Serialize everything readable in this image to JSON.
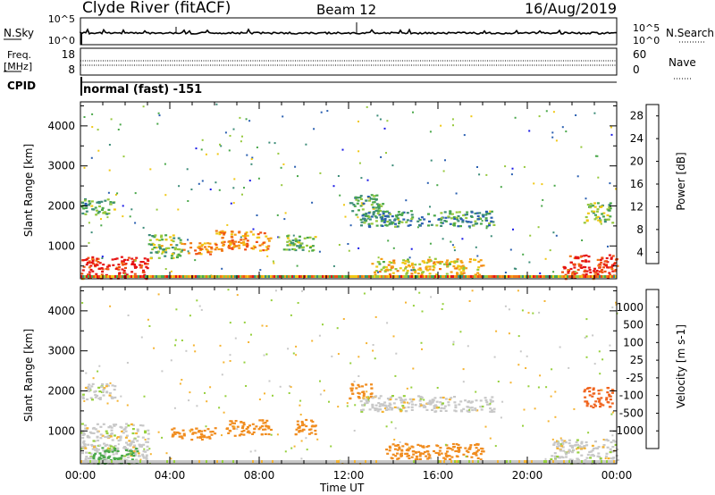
{
  "header": {
    "title": "Clyde River (fitACF)",
    "beam": "Beam 12",
    "date": "16/Aug/2019"
  },
  "nsky_panel": {
    "left_label": "N.Sky",
    "right_label": "N.Search",
    "left_ticks": [
      "10^5",
      "10^0"
    ],
    "right_ticks": [
      "10^5",
      "10^0"
    ]
  },
  "freq_panel": {
    "left_label": "Freq.",
    "left_unit": "[MHz]",
    "right_label": "Nave",
    "left_ticks": [
      "18",
      "8"
    ],
    "right_ticks": [
      "60",
      "0"
    ]
  },
  "cpid": {
    "label": "CPID",
    "value": "normal (fast) -151"
  },
  "x_axis": {
    "label": "Time UT",
    "ticks": [
      "00:00",
      "04:00",
      "08:00",
      "12:00",
      "16:00",
      "20:00",
      "00:00"
    ]
  },
  "chart_data": [
    {
      "type": "heatmap",
      "title": "",
      "ylabel": "Slant Range [km]",
      "xlabel": "Time UT",
      "xlim": [
        "00:00",
        "24:00"
      ],
      "ylim": [
        180,
        4600
      ],
      "ytick_labels": [
        "1000",
        "2000",
        "3000",
        "4000"
      ],
      "colorbar_label": "Power [dB]",
      "colorbar_ticks": [
        "4",
        "8",
        "12",
        "16",
        "20",
        "24",
        "28"
      ],
      "colorbar_colors": [
        "#1a1ae6",
        "#2a5fb0",
        "#3c8c78",
        "#4aa84a",
        "#96c83c",
        "#f0c814",
        "#f5a014",
        "#f07814",
        "#f05014",
        "#e61414"
      ],
      "regions": [
        {
          "t": [
            0.0,
            3.0
          ],
          "r": [
            200,
            750
          ],
          "power_db": 28
        },
        {
          "t": [
            3.0,
            4.5
          ],
          "r": [
            700,
            1300
          ],
          "power_db": 14
        },
        {
          "t": [
            0.0,
            1.5
          ],
          "r": [
            1800,
            2200
          ],
          "power_db": 12
        },
        {
          "t": [
            4.5,
            6.0
          ],
          "r": [
            800,
            1100
          ],
          "power_db": 22
        },
        {
          "t": [
            6.0,
            8.5
          ],
          "r": [
            900,
            1400
          ],
          "power_db": 22
        },
        {
          "t": [
            9.0,
            10.5
          ],
          "r": [
            900,
            1300
          ],
          "power_db": 12
        },
        {
          "t": [
            12.0,
            13.5
          ],
          "r": [
            1800,
            2300
          ],
          "power_db": 12
        },
        {
          "t": [
            12.5,
            18.5
          ],
          "r": [
            1500,
            1900
          ],
          "power_db": 10
        },
        {
          "t": [
            13.0,
            18.0
          ],
          "r": [
            300,
            700
          ],
          "power_db": 18
        },
        {
          "t": [
            21.5,
            24.0
          ],
          "r": [
            200,
            800
          ],
          "power_db": 28
        },
        {
          "t": [
            22.5,
            23.8
          ],
          "r": [
            1600,
            2100
          ],
          "power_db": 14
        }
      ]
    },
    {
      "type": "heatmap",
      "title": "",
      "ylabel": "Slant Range [km]",
      "xlabel": "Time UT",
      "xlim": [
        "00:00",
        "24:00"
      ],
      "ylim": [
        180,
        4600
      ],
      "ytick_labels": [
        "1000",
        "2000",
        "3000",
        "4000"
      ],
      "colorbar_label": "Velocity [m s-1]",
      "colorbar_ticks": [
        "1000",
        "500",
        "100",
        "25",
        "-25",
        "-100",
        "-500",
        "-1000"
      ],
      "colorbar_colors": [
        "#1a3cc8",
        "#2a64a8",
        "#3c8c78",
        "#4aa84a",
        "#96d03c",
        "#c8c8c8",
        "#f5b432",
        "#f08c1e",
        "#f0641e",
        "#e61414"
      ],
      "regions": [
        {
          "t": [
            0.0,
            1.5
          ],
          "r": [
            1800,
            2200
          ],
          "velocity_ms": 0
        },
        {
          "t": [
            0.0,
            3.0
          ],
          "r": [
            200,
            1200
          ],
          "velocity_ms": 0
        },
        {
          "t": [
            0.5,
            2.5
          ],
          "r": [
            200,
            600
          ],
          "velocity_ms": 150
        },
        {
          "t": [
            4.0,
            6.0
          ],
          "r": [
            800,
            1100
          ],
          "velocity_ms": -300
        },
        {
          "t": [
            6.5,
            8.5
          ],
          "r": [
            900,
            1300
          ],
          "velocity_ms": -300
        },
        {
          "t": [
            9.5,
            10.5
          ],
          "r": [
            900,
            1300
          ],
          "velocity_ms": -300
        },
        {
          "t": [
            12.0,
            13.0
          ],
          "r": [
            1800,
            2200
          ],
          "velocity_ms": -300
        },
        {
          "t": [
            12.5,
            18.5
          ],
          "r": [
            1500,
            1900
          ],
          "velocity_ms": 0
        },
        {
          "t": [
            13.5,
            18.0
          ],
          "r": [
            300,
            700
          ],
          "velocity_ms": -300
        },
        {
          "t": [
            21.0,
            24.0
          ],
          "r": [
            200,
            800
          ],
          "velocity_ms": 0
        },
        {
          "t": [
            22.5,
            23.8
          ],
          "r": [
            1600,
            2100
          ],
          "velocity_ms": -600
        }
      ]
    }
  ]
}
